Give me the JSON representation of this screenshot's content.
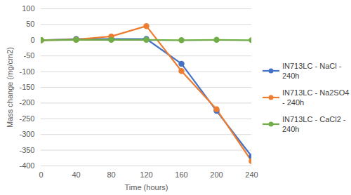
{
  "chart_data": {
    "type": "line",
    "x_label": "Time (hours)",
    "y_label": "Mass change (mg/cm2)",
    "x": [
      0,
      40,
      80,
      120,
      160,
      200,
      240
    ],
    "series": [
      {
        "name": "IN713LC - NaCl - 240h",
        "color": "#4472c4",
        "values": [
          0,
          4,
          4,
          4,
          -75,
          -225,
          -370
        ]
      },
      {
        "name": "IN713LC - Na2SO4 - 240h",
        "color": "#ed7d31",
        "values": [
          0,
          2,
          12,
          45,
          -98,
          -220,
          -385
        ]
      },
      {
        "name": "IN713LC - CaCl2 - 240h",
        "color": "#70ad47",
        "values": [
          0,
          1,
          1,
          1,
          0,
          1,
          0
        ]
      }
    ],
    "xlim": [
      0,
      240
    ],
    "xticks": [
      0,
      40,
      80,
      120,
      160,
      200,
      240
    ],
    "ylim": [
      -400,
      100
    ],
    "yticks": [
      -400,
      -350,
      -300,
      -250,
      -200,
      -150,
      -100,
      -50,
      0,
      50,
      100
    ],
    "grid": true,
    "legend": "right",
    "marker": "circle"
  }
}
